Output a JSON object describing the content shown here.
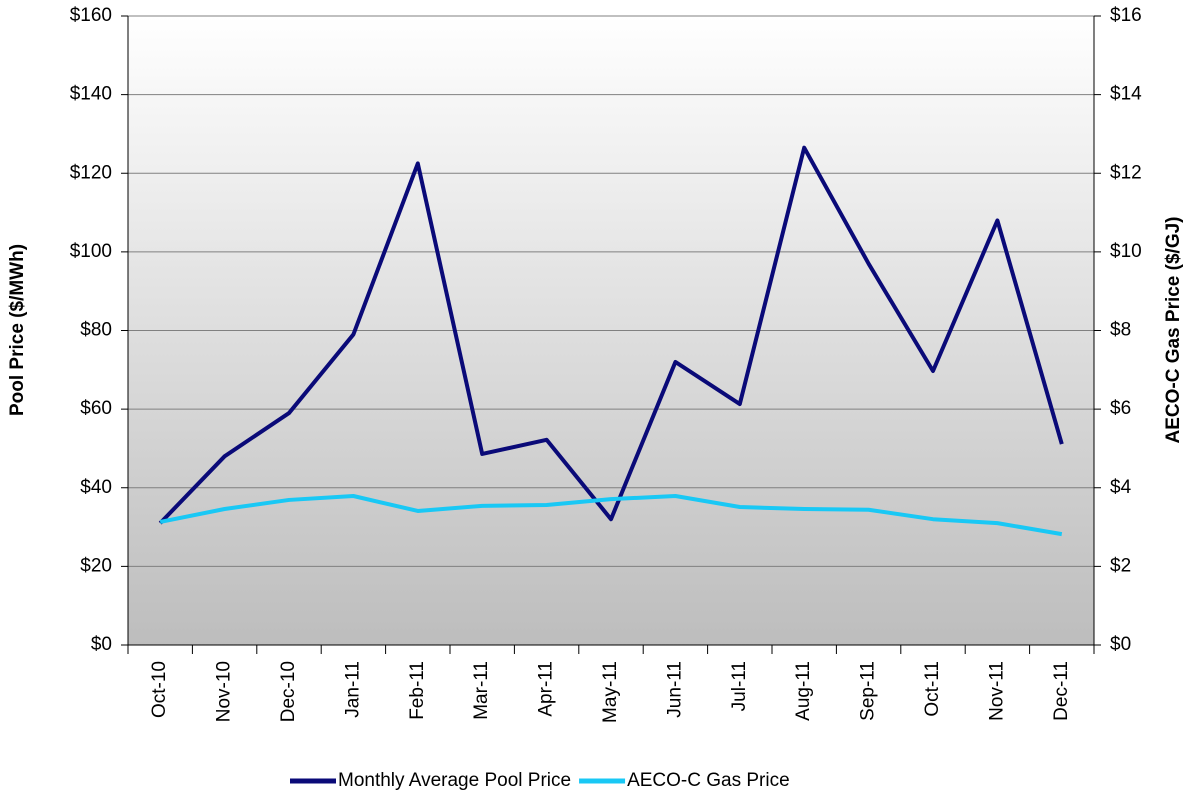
{
  "chart_data": {
    "type": "line",
    "y_label": "Pool Price ($/MWh)",
    "y2_label": "AECO-C Gas Price ($/GJ)",
    "categories": [
      "Oct-10",
      "Nov-10",
      "Dec-10",
      "Jan-11",
      "Feb-11",
      "Mar-11",
      "Apr-11",
      "May-11",
      "Jun-11",
      "Jul-11",
      "Aug-11",
      "Sep-11",
      "Oct-11",
      "Nov-11",
      "Dec-11"
    ],
    "series": [
      {
        "name": "Monthly Average Pool Price",
        "color": "#0a0a78",
        "values": [
          31,
          48,
          59,
          79,
          122.5,
          48.6,
          52.2,
          32,
          72,
          61.3,
          126.5,
          97,
          69.7,
          108,
          51.1
        ]
      },
      {
        "name": "AECO-C Gas Price",
        "color": "#19c8f5",
        "axis": "y2",
        "values": [
          3.13,
          3.46,
          3.69,
          3.79,
          3.41,
          3.54,
          3.56,
          3.71,
          3.79,
          3.51,
          3.46,
          3.44,
          3.2,
          3.1,
          2.82
        ]
      }
    ],
    "ylim": [
      0,
      160
    ],
    "yticks": [
      {
        "value": 0,
        "label": "$0"
      },
      {
        "value": 20,
        "label": "$20"
      },
      {
        "value": 40,
        "label": "$40"
      },
      {
        "value": 60,
        "label": "$60"
      },
      {
        "value": 80,
        "label": "$80"
      },
      {
        "value": 100,
        "label": "$100"
      },
      {
        "value": 120,
        "label": "$120"
      },
      {
        "value": 140,
        "label": "$140"
      },
      {
        "value": 160,
        "label": "$160"
      }
    ],
    "y2lim": [
      0,
      16
    ],
    "y2ticks": [
      {
        "value": 0,
        "label": "$0"
      },
      {
        "value": 2,
        "label": "$2"
      },
      {
        "value": 4,
        "label": "$4"
      },
      {
        "value": 6,
        "label": "$6"
      },
      {
        "value": 8,
        "label": "$8"
      },
      {
        "value": 10,
        "label": "$10"
      },
      {
        "value": 12,
        "label": "$12"
      },
      {
        "value": 14,
        "label": "$14"
      },
      {
        "value": 16,
        "label": "$16"
      }
    ],
    "grid": true,
    "legend": "bottom"
  }
}
